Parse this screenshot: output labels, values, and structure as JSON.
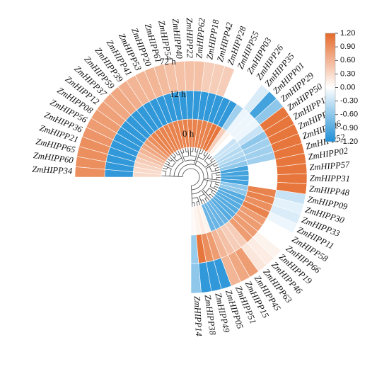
{
  "chart_data": {
    "type": "heatmap",
    "layout": "circular",
    "rings": [
      "0 h",
      "12 h",
      "72 h"
    ],
    "genes": [
      "ZmHIPP14",
      "ZmHIPP38",
      "ZmHIPP49",
      "ZmHIPP05",
      "ZmHIPP51",
      "ZmHIPP15",
      "ZmHIPP45",
      "ZmHIPP63",
      "ZmHIPP46",
      "ZmHIPP19",
      "ZmHIPP66",
      "ZmHIPP58",
      "ZmHIPP11",
      "ZmHIPP33",
      "ZmHIPP30",
      "ZmHIPP09",
      "ZmHIPP48",
      "ZmHIPP31",
      "ZmHIPP57",
      "ZmHIPP02",
      "ZmHIPP52",
      "ZmHIPP06",
      "ZmHIPP43",
      "ZmHIPP10",
      "ZmHIPP50",
      "ZmHIPP29",
      "ZmHIPP01",
      "ZmHIPP35",
      "ZmHIPP26",
      "ZmHIPP03",
      "ZmHIPP55",
      "ZmHIPP28",
      "ZmHIPP42",
      "ZmHIPP18",
      "ZmHIPP62",
      "ZmHIPP22",
      "ZmHIPP40",
      "ZmHIPP54",
      "ZmHIPP61",
      "ZmHIPP20",
      "ZmHIPP53",
      "ZmHIPP41",
      "ZmHIPP39",
      "ZmHIPP59",
      "ZmHIPP37",
      "ZmHIPP12",
      "ZmHIPP08",
      "ZmHIPP56",
      "ZmHIPP36",
      "ZmHIPP21",
      "ZmHIPP65",
      "ZmHIPP60",
      "ZmHIPP34"
    ],
    "values": [
      [
        0.05,
        -0.55,
        -0.6
      ],
      [
        0.1,
        1.1,
        -1.1
      ],
      [
        0.15,
        0.9,
        -1.1
      ],
      [
        0.1,
        0.8,
        -1.1
      ],
      [
        -0.8,
        0.6,
        0.6
      ],
      [
        -0.8,
        0.5,
        0.7
      ],
      [
        -0.8,
        0.4,
        0.8
      ],
      [
        -0.8,
        0.4,
        0.2
      ],
      [
        -0.9,
        0.8,
        0.15
      ],
      [
        -0.9,
        0.8,
        0.1
      ],
      [
        -0.9,
        0.8,
        0.0
      ],
      [
        -0.9,
        0.8,
        0.0
      ],
      [
        -0.9,
        1.0,
        -0.1
      ],
      [
        -0.9,
        0.9,
        -0.2
      ],
      [
        -0.6,
        1.0,
        -0.15
      ],
      [
        -0.6,
        1.0,
        -0.3
      ],
      [
        -1.0,
        0.0,
        1.1
      ],
      [
        -1.0,
        0.0,
        1.1
      ],
      [
        -1.0,
        0.0,
        1.1
      ],
      [
        -1.0,
        0.0,
        1.1
      ],
      [
        -0.6,
        -0.5,
        1.1
      ],
      [
        -0.5,
        -0.5,
        1.1
      ],
      [
        -0.4,
        -0.5,
        1.1
      ],
      [
        -0.4,
        -0.6,
        1.1
      ],
      [
        -0.3,
        -0.3,
        1.1
      ],
      [
        -0.3,
        -0.1,
        -0.6
      ],
      [
        0.0,
        -0.1,
        -1.0
      ],
      [
        0.1,
        -0.1,
        -0.2
      ],
      [
        0.4,
        -0.5,
        0.0
      ],
      [
        1.1,
        -1.1,
        0.0
      ],
      [
        1.1,
        -1.1,
        0.0
      ],
      [
        1.0,
        -1.1,
        0.4
      ],
      [
        1.0,
        -1.1,
        0.4
      ],
      [
        1.0,
        -1.1,
        0.4
      ],
      [
        1.0,
        -1.1,
        0.5
      ],
      [
        1.0,
        -1.1,
        0.5
      ],
      [
        1.0,
        -1.1,
        0.5
      ],
      [
        1.0,
        -1.1,
        0.5
      ],
      [
        1.0,
        -1.1,
        0.55
      ],
      [
        1.0,
        -1.1,
        0.6
      ],
      [
        1.0,
        -1.1,
        0.6
      ],
      [
        1.0,
        -1.1,
        0.6
      ],
      [
        1.0,
        -1.1,
        0.65
      ],
      [
        1.0,
        -1.1,
        0.7
      ],
      [
        0.9,
        -1.1,
        0.7
      ],
      [
        0.8,
        -1.1,
        0.75
      ],
      [
        0.7,
        -1.1,
        0.8
      ],
      [
        0.6,
        -1.1,
        0.8
      ],
      [
        0.5,
        -1.1,
        0.85
      ],
      [
        0.4,
        -1.1,
        0.9
      ],
      [
        0.35,
        -1.1,
        0.9
      ],
      [
        0.3,
        -1.1,
        0.9
      ],
      [
        0.3,
        -1.1,
        0.9
      ]
    ],
    "colorbar": {
      "min": -1.2,
      "max": 1.2,
      "ticks": [
        "1.20",
        "0.90",
        "0.60",
        "0.30",
        "0.00",
        "-0.30",
        "-0.60",
        "-0.90",
        "-1.20"
      ],
      "colors": {
        "low": "#1e8fd6",
        "mid": "#ffffff",
        "high": "#e56a2a"
      }
    }
  }
}
